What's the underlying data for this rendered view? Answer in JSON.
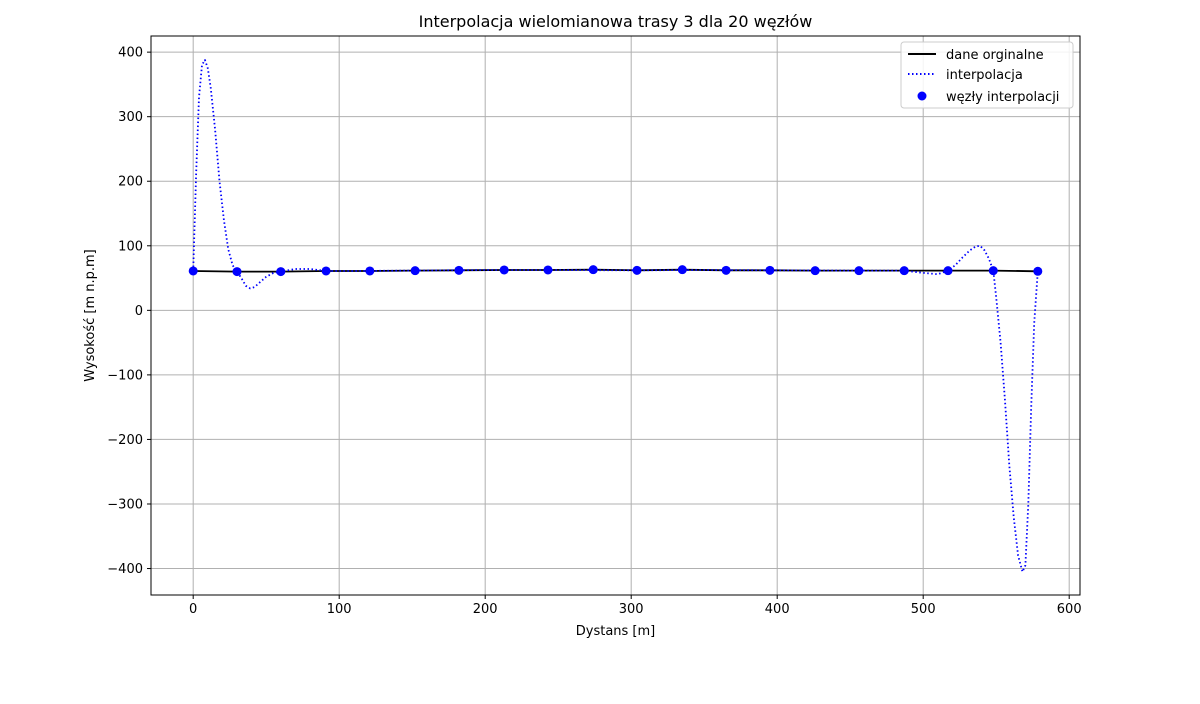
{
  "chart_data": {
    "type": "line",
    "title": "Interpolacja wielomianowa trasy 3 dla 20 węzłów",
    "xlabel": "Dystans [m]",
    "ylabel": "Wysokość [m n.p.m]",
    "xlim": [
      -28.9,
      607.4
    ],
    "ylim": [
      -441,
      425
    ],
    "xticks": [
      0,
      100,
      200,
      300,
      400,
      500,
      600
    ],
    "yticks": [
      -400,
      -300,
      -200,
      -100,
      0,
      100,
      200,
      300,
      400
    ],
    "grid": true,
    "legend_position": "top-right",
    "series": [
      {
        "name": "dane orginalne",
        "kind": "line",
        "color": "#000000",
        "x": [
          0,
          30,
          60,
          91,
          121,
          152,
          182,
          213,
          243,
          274,
          304,
          335,
          365,
          395,
          426,
          456,
          487,
          517,
          548,
          578.5
        ],
        "y": [
          61,
          60,
          60,
          61,
          61,
          61.5,
          62,
          62.5,
          62.5,
          63,
          62,
          63,
          62,
          62,
          61.5,
          61.5,
          61.5,
          61.5,
          61.5,
          60.5
        ]
      },
      {
        "name": "interpolacja",
        "kind": "dotted-line",
        "color": "#0000ff",
        "x": [
          0,
          2,
          4,
          6,
          8,
          10,
          12,
          15,
          18,
          21,
          24,
          27,
          30,
          33,
          36,
          39,
          42,
          45,
          50,
          55,
          60,
          70,
          80,
          91,
          110,
          150,
          200,
          250,
          300,
          350,
          400,
          450,
          487,
          500,
          510,
          517,
          522,
          527,
          532,
          536,
          539,
          542,
          545,
          548,
          550,
          553,
          556,
          559,
          562,
          565,
          568,
          570,
          572,
          574,
          576,
          578.5
        ],
        "y": [
          61,
          210,
          330,
          380,
          388,
          375,
          345,
          280,
          200,
          140,
          95,
          70,
          60,
          50,
          38,
          34,
          36,
          42,
          52,
          58,
          60,
          64,
          64,
          61,
          61,
          61.5,
          62.5,
          62.5,
          62,
          62.5,
          62,
          61.5,
          61.5,
          58,
          56,
          61.5,
          70,
          82,
          93,
          99,
          100,
          93,
          80,
          61.5,
          20,
          -50,
          -140,
          -240,
          -320,
          -380,
          -405,
          -395,
          -300,
          -150,
          -20,
          60.5
        ]
      },
      {
        "name": "węzły interpolacji",
        "kind": "scatter",
        "color": "#0000ff",
        "x": [
          0,
          30,
          60,
          91,
          121,
          152,
          182,
          213,
          243,
          274,
          304,
          335,
          365,
          395,
          426,
          456,
          487,
          517,
          548,
          578.5
        ],
        "y": [
          61,
          60,
          60,
          61,
          61,
          61.5,
          62,
          62.5,
          62.5,
          63,
          62,
          63,
          62,
          62,
          61.5,
          61.5,
          61.5,
          61.5,
          61.5,
          60.5
        ]
      }
    ]
  }
}
